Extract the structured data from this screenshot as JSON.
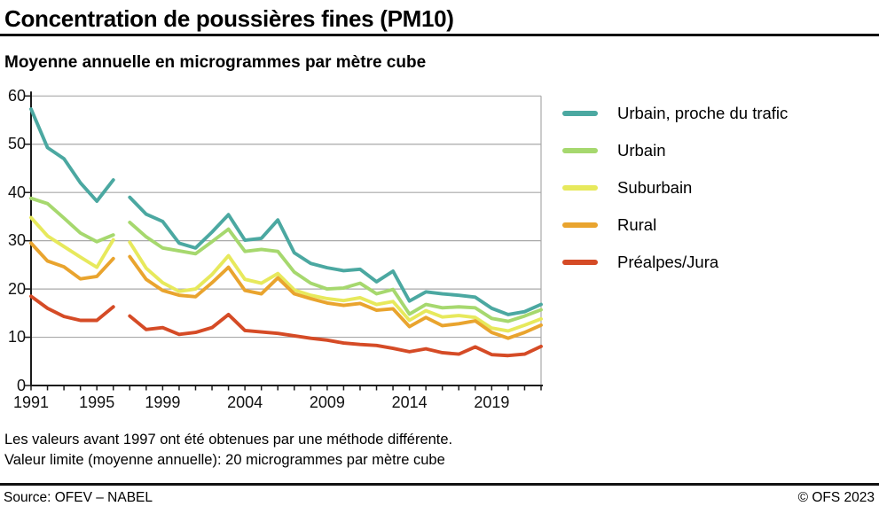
{
  "header": {
    "title": "Concentration de poussières fines (PM10)"
  },
  "chart": {
    "subtitle": "Moyenne annuelle en microgrammes par mètre cube"
  },
  "notes": {
    "line1": "Les valeurs avant 1997 ont été obtenues par une méthode différente.",
    "line2": "Valeur limite (moyenne annuelle): 20 microgrammes par mètre cube"
  },
  "footer": {
    "source": "Source: OFEV – NABEL",
    "copyright": "© OFS 2023"
  },
  "colors": {
    "axis": "#1a1a1a",
    "gridline": "#a9a9a9",
    "text": "#000000"
  },
  "chart_data": {
    "type": "line",
    "title": "Concentration de poussières fines (PM10)",
    "subtitle": "Moyenne annuelle en microgrammes par mètre cube",
    "unit": "microgrammes par mètre cube",
    "x": [
      1991,
      1992,
      1993,
      1994,
      1995,
      1996,
      1997,
      1998,
      1999,
      2000,
      2001,
      2002,
      2003,
      2004,
      2005,
      2006,
      2007,
      2008,
      2009,
      2010,
      2011,
      2012,
      2013,
      2014,
      2015,
      2016,
      2017,
      2018,
      2019,
      2020,
      2021,
      2022
    ],
    "x_tick_labels": [
      1991,
      1995,
      1999,
      2004,
      2009,
      2014,
      2019
    ],
    "y_ticks": [
      0,
      10,
      20,
      30,
      40,
      50,
      60
    ],
    "ylim": [
      0,
      60
    ],
    "xlim": [
      1991,
      2022
    ],
    "grid": "horizontal",
    "legend_position": "right",
    "gap_after_year": 1996,
    "gap_reason": "Les valeurs avant 1997 ont été obtenues par une méthode différente.",
    "series": [
      {
        "name": "Urbain, proche du trafic",
        "color": "#4BA8A1",
        "values": [
          57.3,
          49.3,
          47.0,
          42.0,
          38.2,
          42.6,
          39.0,
          35.5,
          34.0,
          29.5,
          28.5,
          31.8,
          35.4,
          30.1,
          30.5,
          34.3,
          27.5,
          25.3,
          24.4,
          23.8,
          24.1,
          21.5,
          23.7,
          17.5,
          19.4,
          19.0,
          18.7,
          18.3,
          16.0,
          14.7,
          15.3,
          16.8
        ]
      },
      {
        "name": "Urbain",
        "color": "#A6D86E",
        "values": [
          38.8,
          37.7,
          34.7,
          31.6,
          29.8,
          31.2,
          33.8,
          30.8,
          28.5,
          27.9,
          27.3,
          29.8,
          32.4,
          27.8,
          28.2,
          27.8,
          23.5,
          21.2,
          20.0,
          20.2,
          21.2,
          19.0,
          19.9,
          14.8,
          16.8,
          16.1,
          16.3,
          16.1,
          13.9,
          13.3,
          14.4,
          15.7
        ]
      },
      {
        "name": "Suburbain",
        "color": "#E7E95C",
        "values": [
          34.8,
          31.0,
          28.8,
          26.6,
          24.5,
          30.2,
          29.7,
          24.3,
          21.3,
          19.5,
          20.0,
          23.0,
          26.9,
          22.0,
          21.2,
          23.2,
          19.8,
          18.7,
          18.0,
          17.6,
          18.2,
          16.8,
          17.4,
          13.5,
          15.5,
          14.2,
          14.5,
          14.1,
          11.9,
          11.3,
          12.5,
          13.8
        ]
      },
      {
        "name": "Rural",
        "color": "#E9A42E",
        "values": [
          29.5,
          25.8,
          24.6,
          22.1,
          22.6,
          26.3,
          26.7,
          22.0,
          19.7,
          18.7,
          18.4,
          21.3,
          24.5,
          19.7,
          19.0,
          22.3,
          19.0,
          18.0,
          17.1,
          16.6,
          17.0,
          15.6,
          15.9,
          12.2,
          14.1,
          12.4,
          12.8,
          13.4,
          11.0,
          9.8,
          11.0,
          12.5
        ]
      },
      {
        "name": "Préalpes/Jura",
        "color": "#D54B26",
        "values": [
          18.5,
          16.0,
          14.3,
          13.5,
          13.5,
          16.3,
          14.4,
          11.6,
          12.0,
          10.6,
          11.0,
          12.0,
          14.7,
          11.4,
          11.1,
          10.8,
          10.3,
          9.8,
          9.4,
          8.8,
          8.5,
          8.3,
          7.7,
          7.0,
          7.6,
          6.8,
          6.5,
          8.0,
          6.4,
          6.2,
          6.5,
          8.1
        ]
      }
    ]
  }
}
